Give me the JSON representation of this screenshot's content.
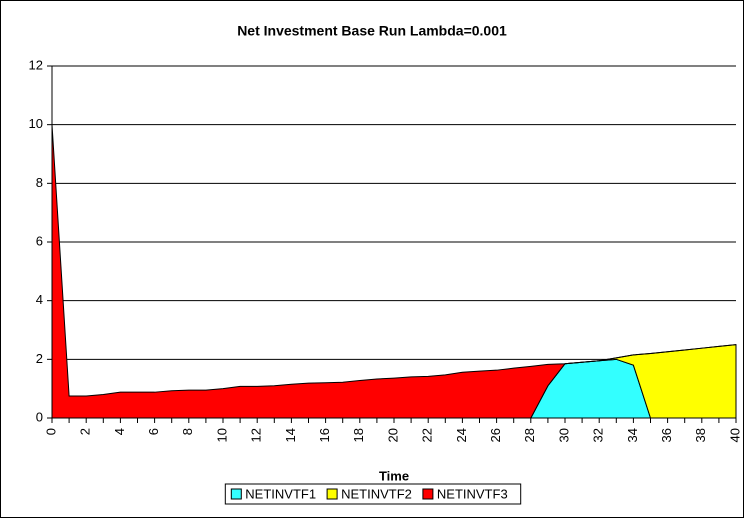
{
  "chart_data": {
    "type": "area",
    "stacked": true,
    "title": "Net Investment Base Run Lambda=0.001",
    "x_label": "Time",
    "categories": [
      "0",
      null,
      "2",
      null,
      "4",
      null,
      "6",
      null,
      "8",
      null,
      "10",
      null,
      "12",
      null,
      "14",
      null,
      "16",
      null,
      "18",
      null,
      "20",
      null,
      "22",
      null,
      "24",
      null,
      "26",
      null,
      "28",
      null,
      "30",
      null,
      "32",
      null,
      "34",
      null,
      "36",
      null,
      "38",
      null,
      "40"
    ],
    "series": [
      {
        "name": "NETINVTF1",
        "color": "#33ffff",
        "values": [
          0,
          0,
          0,
          0,
          0,
          0,
          0,
          0,
          0,
          0,
          0,
          0,
          0,
          0,
          0,
          0,
          0,
          0,
          0,
          0,
          0,
          0,
          0,
          0,
          0,
          0,
          0,
          0,
          0,
          1.1,
          1.85,
          1.9,
          1.95,
          2.0,
          1.8,
          0,
          0,
          0,
          0,
          0,
          0
        ]
      },
      {
        "name": "NETINVTF2",
        "color": "#ffff00",
        "values": [
          0,
          0,
          0,
          0,
          0,
          0,
          0,
          0,
          0,
          0,
          0,
          0,
          0,
          0,
          0,
          0,
          0,
          0,
          0,
          0,
          0,
          0,
          0,
          0,
          0,
          0,
          0,
          0,
          0,
          0,
          0,
          0,
          0,
          0.05,
          0.35,
          2.2,
          2.26,
          2.32,
          2.38,
          2.44,
          2.5
        ]
      },
      {
        "name": "NETINVTF3",
        "color": "#ff0000",
        "values": [
          10,
          0.75,
          0.75,
          0.8,
          0.88,
          0.88,
          0.88,
          0.93,
          0.95,
          0.95,
          1.0,
          1.08,
          1.08,
          1.1,
          1.15,
          1.19,
          1.2,
          1.22,
          1.28,
          1.33,
          1.36,
          1.4,
          1.42,
          1.47,
          1.56,
          1.6,
          1.63,
          1.7,
          1.76,
          0.73,
          0,
          0,
          0,
          0,
          0,
          0,
          0,
          0,
          0,
          0,
          0
        ]
      }
    ],
    "ylim": [
      0,
      12
    ],
    "yticks": [
      0,
      2,
      4,
      6,
      8,
      10,
      12
    ],
    "grid": true,
    "legend": "bottom"
  }
}
